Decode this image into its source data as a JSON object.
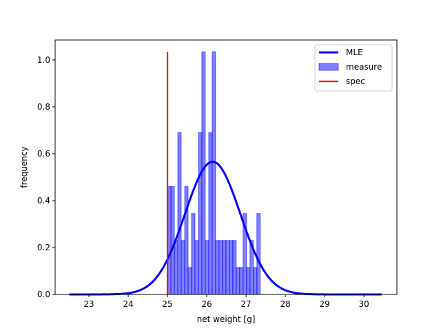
{
  "chart_data": {
    "type": "bar",
    "xlabel": "net weight [g]",
    "ylabel": "frequency",
    "xlim": [
      22.14,
      30.84
    ],
    "ylim": [
      0,
      1.085
    ],
    "xticks": [
      23,
      24,
      25,
      26,
      27,
      28,
      29,
      30
    ],
    "yticks": [
      0.0,
      0.2,
      0.4,
      0.6,
      0.8,
      1.0
    ],
    "xtick_labels": [
      "23",
      "24",
      "25",
      "26",
      "27",
      "28",
      "29",
      "30"
    ],
    "ytick_labels": [
      "0.0",
      "0.2",
      "0.4",
      "0.6",
      "0.8",
      "1.0"
    ],
    "grid": false,
    "legend_position": "top-right",
    "legend": [
      {
        "label": "MLE",
        "kind": "line",
        "color": "#0000ff"
      },
      {
        "label": "measure",
        "kind": "patch",
        "color": "#0000ff"
      },
      {
        "label": "spec",
        "kind": "line",
        "color": "#ff0000"
      }
    ],
    "histogram": {
      "name": "measure",
      "color": "#0000ff",
      "alpha": 0.5,
      "bin_start": 25.0,
      "bin_width": 0.0875,
      "values": [
        0.46,
        0.46,
        0.23,
        0.69,
        0.23,
        0.46,
        0.115,
        0.345,
        0.23,
        0.69,
        1.035,
        0.23,
        0.69,
        1.035,
        0.23,
        0.23,
        0.23,
        0.23,
        0.23,
        0.23,
        0.115,
        0.115,
        0.345,
        0.115,
        0.23,
        0.115,
        0.345
      ]
    },
    "mle_curve": {
      "name": "MLE",
      "color": "#0000ff",
      "distribution": "normal",
      "mean": 26.15,
      "std": 0.705,
      "x_range": [
        22.5,
        30.45
      ]
    },
    "spec_line": {
      "name": "spec",
      "color": "#ff0000",
      "x": 25.0,
      "y_range": [
        0,
        1.035
      ]
    }
  }
}
